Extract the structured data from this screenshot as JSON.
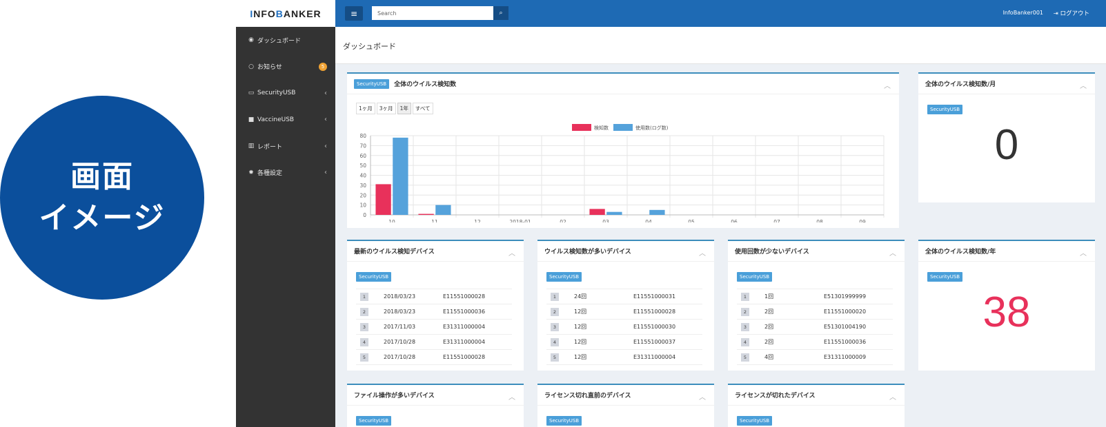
{
  "promo": {
    "line1": "画面",
    "line2": "イメージ"
  },
  "brand": {
    "text_i": "I",
    "text_rest": "NFO ",
    "text_b": "B",
    "text_rest2": "ANKER"
  },
  "sidebar": {
    "items": [
      {
        "label": "ダッシュボード",
        "icon": "dashboard-icon"
      },
      {
        "label": "お知らせ",
        "icon": "comment-icon",
        "badge": "5"
      },
      {
        "label": "SecurityUSB",
        "icon": "folder-open-icon"
      },
      {
        "label": "VaccineUSB",
        "icon": "folder-icon"
      },
      {
        "label": "レポート",
        "icon": "bar-chart-icon"
      },
      {
        "label": "各種設定",
        "icon": "gear-icon"
      }
    ]
  },
  "topbar": {
    "search_placeholder": "Search",
    "user": "InfoBanker001",
    "logout": "ログアウト"
  },
  "page": {
    "title": "ダッシュボード"
  },
  "colors": {
    "brand_blue": "#1e6ab4",
    "detect_red": "#e8315b",
    "usage_blue": "#55a2db",
    "sidebar": "#333333",
    "circle": "#0b4f9c"
  },
  "tag": "SecurityUSB",
  "panels": {
    "virus_total": {
      "title": "全体のウイルス検知数",
      "ranges": [
        "1ヶ月",
        "3ヶ月",
        "1年",
        "すべて"
      ],
      "active_range": "1年"
    },
    "virus_month": {
      "title": "全体のウイルス検知数/月",
      "value": "0"
    },
    "virus_year": {
      "title": "全体のウイルス検知数/年",
      "value": "38"
    },
    "latest_devices": {
      "title": "最新のウイルス検知デバイス",
      "rows": [
        {
          "n": "1",
          "d": "2018/03/23",
          "id": "E11551000028"
        },
        {
          "n": "2",
          "d": "2018/03/23",
          "id": "E11551000036"
        },
        {
          "n": "3",
          "d": "2017/11/03",
          "id": "E31311000004"
        },
        {
          "n": "4",
          "d": "2017/10/28",
          "id": "E31311000004"
        },
        {
          "n": "5",
          "d": "2017/10/28",
          "id": "E11551000028"
        }
      ]
    },
    "most_virus_devices": {
      "title": "ウイルス検知数が多いデバイス",
      "rows": [
        {
          "n": "1",
          "d": "24回",
          "id": "E11551000031"
        },
        {
          "n": "2",
          "d": "12回",
          "id": "E11551000028"
        },
        {
          "n": "3",
          "d": "12回",
          "id": "E11551000030"
        },
        {
          "n": "4",
          "d": "12回",
          "id": "E11551000037"
        },
        {
          "n": "5",
          "d": "12回",
          "id": "E31311000004"
        }
      ]
    },
    "least_used_devices": {
      "title": "使用回数が少ないデバイス",
      "rows": [
        {
          "n": "1",
          "d": "1回",
          "id": "E51301999999"
        },
        {
          "n": "2",
          "d": "2回",
          "id": "E11551000020"
        },
        {
          "n": "3",
          "d": "2回",
          "id": "E51301004190"
        },
        {
          "n": "4",
          "d": "2回",
          "id": "E11551000036"
        },
        {
          "n": "5",
          "d": "4回",
          "id": "E31311000009"
        }
      ]
    },
    "file_ops": {
      "title": "ファイル操作が多いデバイス"
    },
    "license_soon": {
      "title": "ライセンス切れ直前のデバイス"
    },
    "license_expired": {
      "title": "ライセンスが切れたデバイス"
    }
  },
  "chart_data": {
    "type": "bar",
    "categories": [
      "10",
      "11",
      "12",
      "2018-01",
      "02",
      "03",
      "04",
      "05",
      "06",
      "07",
      "08",
      "09"
    ],
    "series": [
      {
        "name": "検知数",
        "color": "#e8315b",
        "values": [
          31,
          1,
          0,
          0,
          0,
          6,
          0,
          0,
          0,
          0,
          0,
          0
        ]
      },
      {
        "name": "使用数(ログ数)",
        "color": "#55a2db",
        "values": [
          78,
          10,
          0,
          0,
          0,
          3,
          5,
          0,
          0,
          0,
          0,
          0
        ]
      }
    ],
    "yticks": [
      0,
      10,
      20,
      30,
      40,
      50,
      60,
      70,
      80
    ],
    "ylim": [
      0,
      80
    ],
    "legend": "top-center",
    "grid": true
  }
}
